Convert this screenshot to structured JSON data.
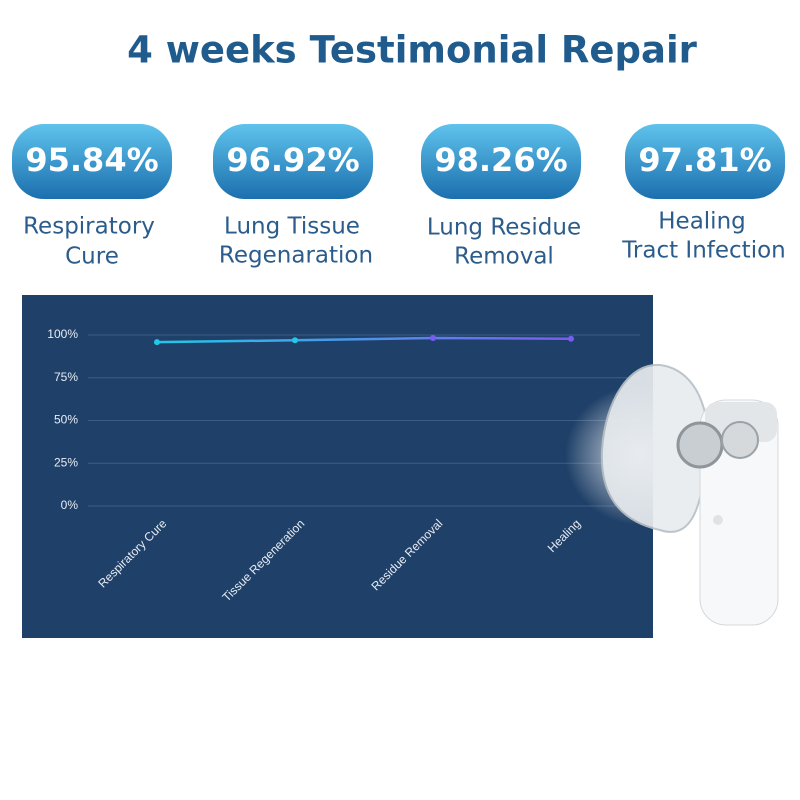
{
  "title": "4 weeks Testimonial Repair",
  "stats": [
    {
      "value": "95.84%",
      "label": [
        "Respiratory",
        "Cure"
      ]
    },
    {
      "value": "96.92%",
      "label": [
        "Lung Tissue",
        "Regenaration"
      ]
    },
    {
      "value": "98.26%",
      "label": [
        "Lung Residue",
        "Removal"
      ]
    },
    {
      "value": "97.81%",
      "label": [
        "Healing",
        "Tract Infection"
      ]
    }
  ],
  "chart_data": {
    "type": "line",
    "categories": [
      "Respiratory Cure",
      "Tissue Regeneration",
      "Residue Removal",
      "Healing"
    ],
    "values": [
      95.84,
      96.92,
      98.26,
      97.81
    ],
    "gradient": [
      "#22c8e6",
      "#7b5cf0"
    ],
    "ylim": [
      0,
      100
    ],
    "yticks": [
      {
        "value": 0,
        "label": "0%"
      },
      {
        "value": 25,
        "label": "25%"
      },
      {
        "value": 50,
        "label": "50%"
      },
      {
        "value": 75,
        "label": "75%"
      },
      {
        "value": 100,
        "label": "100%"
      }
    ],
    "grid": true
  }
}
